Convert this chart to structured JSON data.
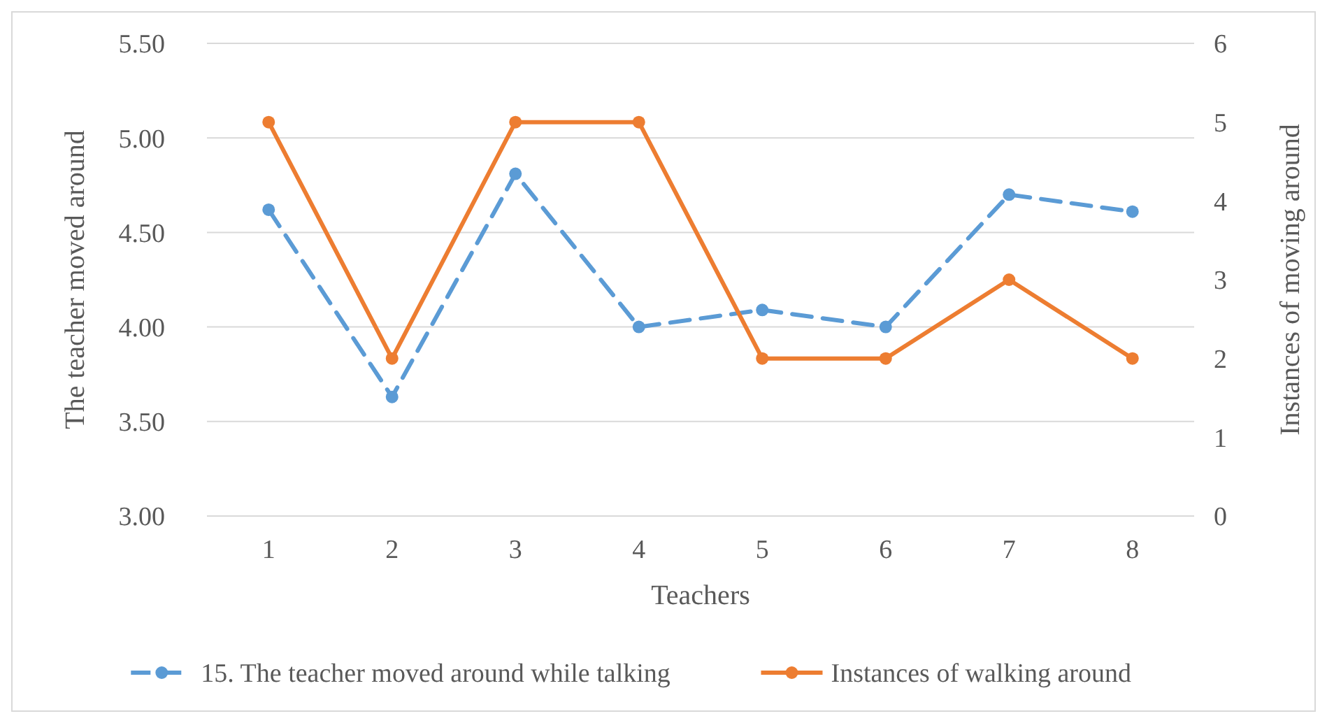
{
  "chart_data": {
    "type": "line",
    "categories": [
      "1",
      "2",
      "3",
      "4",
      "5",
      "6",
      "7",
      "8"
    ],
    "xlabel": "Teachers",
    "ylabel": "The teacher moved around",
    "y2label": "Instances of moving around",
    "ylim": [
      3,
      5.5
    ],
    "yticks": [
      {
        "value": 3,
        "label": "3.00"
      },
      {
        "value": 3.5,
        "label": "3.50"
      },
      {
        "value": 4,
        "label": "4.00"
      },
      {
        "value": 4.5,
        "label": "4.50"
      },
      {
        "value": 5,
        "label": "5.00"
      },
      {
        "value": 5.5,
        "label": "5.50"
      }
    ],
    "y2lim": [
      0,
      6
    ],
    "y2ticks": [
      0,
      1,
      2,
      3,
      4,
      5,
      6
    ],
    "grid": "y",
    "legend": "bottom",
    "marker": "circle",
    "series": [
      {
        "name": "15. The teacher moved around while talking",
        "color": "#5b9bd5",
        "line_style": "dashed",
        "values": [
          4.62,
          3.63,
          4.81,
          4.0,
          4.09,
          4.0,
          4.7,
          4.61
        ]
      },
      {
        "name": "Instances of walking around",
        "color": "#ed7d31",
        "line_style": "solid",
        "axis": "y2",
        "values": [
          5,
          2,
          5,
          5,
          2,
          2,
          3,
          2
        ]
      }
    ]
  }
}
